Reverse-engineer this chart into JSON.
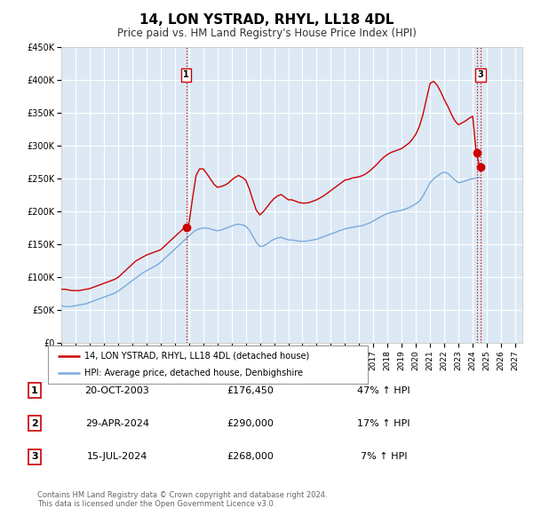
{
  "title": "14, LON YSTRAD, RHYL, LL18 4DL",
  "subtitle": "Price paid vs. HM Land Registry's House Price Index (HPI)",
  "title_fontsize": 11,
  "subtitle_fontsize": 8.5,
  "background_color": "#ffffff",
  "plot_bg_color": "#dce9f5",
  "grid_color": "#ffffff",
  "ylim": [
    0,
    450000
  ],
  "yticks": [
    0,
    50000,
    100000,
    150000,
    200000,
    250000,
    300000,
    350000,
    400000,
    450000
  ],
  "ytick_labels": [
    "£0",
    "£50K",
    "£100K",
    "£150K",
    "£200K",
    "£250K",
    "£300K",
    "£350K",
    "£400K",
    "£450K"
  ],
  "xlim_start": 1995.0,
  "xlim_end": 2027.5,
  "xtick_years": [
    1995,
    1996,
    1997,
    1998,
    1999,
    2000,
    2001,
    2002,
    2003,
    2004,
    2005,
    2006,
    2007,
    2008,
    2009,
    2010,
    2011,
    2012,
    2013,
    2014,
    2015,
    2016,
    2017,
    2018,
    2019,
    2020,
    2021,
    2022,
    2023,
    2024,
    2025,
    2026,
    2027
  ],
  "hpi_color": "#7aaadd",
  "price_color": "#cc0000",
  "vline_color": "#cc0000",
  "marker_color": "#cc0000",
  "marker_size": 6,
  "legend_line1": "14, LON YSTRAD, RHYL, LL18 4DL (detached house)",
  "legend_line2": "HPI: Average price, detached house, Denbighshire",
  "transactions": [
    {
      "num": 1,
      "date": "20-OCT-2003",
      "price": 176450,
      "price_str": "£176,450",
      "pct": "47%",
      "direction": "↑",
      "label": "HPI",
      "x": 2003.8
    },
    {
      "num": 2,
      "date": "29-APR-2024",
      "price": 290000,
      "price_str": "£290,000",
      "pct": "17%",
      "direction": "↑",
      "label": "HPI",
      "x": 2024.33
    },
    {
      "num": 3,
      "date": "15-JUL-2024",
      "price": 268000,
      "price_str": "£268,000",
      "pct": "7%",
      "direction": "↑",
      "label": "HPI",
      "x": 2024.54
    }
  ],
  "footer_line1": "Contains HM Land Registry data © Crown copyright and database right 2024.",
  "footer_line2": "This data is licensed under the Open Government Licence v3.0.",
  "hpi_data_x": [
    1995.0,
    1995.25,
    1995.5,
    1995.75,
    1996.0,
    1996.25,
    1996.5,
    1996.75,
    1997.0,
    1997.25,
    1997.5,
    1997.75,
    1998.0,
    1998.25,
    1998.5,
    1998.75,
    1999.0,
    1999.25,
    1999.5,
    1999.75,
    2000.0,
    2000.25,
    2000.5,
    2000.75,
    2001.0,
    2001.25,
    2001.5,
    2001.75,
    2002.0,
    2002.25,
    2002.5,
    2002.75,
    2003.0,
    2003.25,
    2003.5,
    2003.75,
    2004.0,
    2004.25,
    2004.5,
    2004.75,
    2005.0,
    2005.25,
    2005.5,
    2005.75,
    2006.0,
    2006.25,
    2006.5,
    2006.75,
    2007.0,
    2007.25,
    2007.5,
    2007.75,
    2008.0,
    2008.25,
    2008.5,
    2008.75,
    2009.0,
    2009.25,
    2009.5,
    2009.75,
    2010.0,
    2010.25,
    2010.5,
    2010.75,
    2011.0,
    2011.25,
    2011.5,
    2011.75,
    2012.0,
    2012.25,
    2012.5,
    2012.75,
    2013.0,
    2013.25,
    2013.5,
    2013.75,
    2014.0,
    2014.25,
    2014.5,
    2014.75,
    2015.0,
    2015.25,
    2015.5,
    2015.75,
    2016.0,
    2016.25,
    2016.5,
    2016.75,
    2017.0,
    2017.25,
    2017.5,
    2017.75,
    2018.0,
    2018.25,
    2018.5,
    2018.75,
    2019.0,
    2019.25,
    2019.5,
    2019.75,
    2020.0,
    2020.25,
    2020.5,
    2020.75,
    2021.0,
    2021.25,
    2021.5,
    2021.75,
    2022.0,
    2022.25,
    2022.5,
    2022.75,
    2023.0,
    2023.25,
    2023.5,
    2023.75,
    2024.0,
    2024.25,
    2024.5
  ],
  "hpi_data_y": [
    57000,
    56000,
    55500,
    56000,
    57000,
    58000,
    59000,
    60000,
    62000,
    64000,
    66000,
    68000,
    70000,
    72000,
    74000,
    76000,
    79000,
    83000,
    87000,
    91000,
    95000,
    99000,
    103000,
    107000,
    110000,
    113000,
    116000,
    119000,
    123000,
    128000,
    133000,
    138000,
    143000,
    148000,
    153000,
    158000,
    163000,
    168000,
    172000,
    174000,
    175000,
    175000,
    174000,
    172000,
    171000,
    172000,
    174000,
    176000,
    178000,
    180000,
    181000,
    180000,
    178000,
    172000,
    163000,
    153000,
    147000,
    148000,
    151000,
    155000,
    158000,
    160000,
    161000,
    159000,
    157000,
    157000,
    156000,
    155000,
    155000,
    155000,
    156000,
    157000,
    158000,
    160000,
    162000,
    164000,
    166000,
    168000,
    170000,
    172000,
    174000,
    175000,
    176000,
    177000,
    178000,
    179000,
    181000,
    183000,
    186000,
    189000,
    192000,
    195000,
    197000,
    199000,
    200000,
    201000,
    202000,
    204000,
    206000,
    209000,
    212000,
    216000,
    224000,
    234000,
    244000,
    250000,
    254000,
    258000,
    260000,
    258000,
    253000,
    248000,
    244000,
    245000,
    247000,
    249000,
    250000,
    251000,
    252000
  ],
  "price_data_x": [
    1995.0,
    1995.25,
    1995.5,
    1995.75,
    1996.0,
    1996.25,
    1996.5,
    1996.75,
    1997.0,
    1997.25,
    1997.5,
    1997.75,
    1998.0,
    1998.25,
    1998.5,
    1998.75,
    1999.0,
    1999.25,
    1999.5,
    1999.75,
    2000.0,
    2000.25,
    2000.5,
    2000.75,
    2001.0,
    2001.25,
    2001.5,
    2001.75,
    2002.0,
    2002.25,
    2002.5,
    2002.75,
    2003.0,
    2003.25,
    2003.5,
    2003.75,
    2004.0,
    2004.25,
    2004.5,
    2004.75,
    2005.0,
    2005.25,
    2005.5,
    2005.75,
    2006.0,
    2006.25,
    2006.5,
    2006.75,
    2007.0,
    2007.25,
    2007.5,
    2007.75,
    2008.0,
    2008.25,
    2008.5,
    2008.75,
    2009.0,
    2009.25,
    2009.5,
    2009.75,
    2010.0,
    2010.25,
    2010.5,
    2010.75,
    2011.0,
    2011.25,
    2011.5,
    2011.75,
    2012.0,
    2012.25,
    2012.5,
    2012.75,
    2013.0,
    2013.25,
    2013.5,
    2013.75,
    2014.0,
    2014.25,
    2014.5,
    2014.75,
    2015.0,
    2015.25,
    2015.5,
    2015.75,
    2016.0,
    2016.25,
    2016.5,
    2016.75,
    2017.0,
    2017.25,
    2017.5,
    2017.75,
    2018.0,
    2018.25,
    2018.5,
    2018.75,
    2019.0,
    2019.25,
    2019.5,
    2019.75,
    2020.0,
    2020.25,
    2020.5,
    2020.75,
    2021.0,
    2021.25,
    2021.5,
    2021.75,
    2022.0,
    2022.25,
    2022.5,
    2022.75,
    2023.0,
    2023.25,
    2023.5,
    2023.75,
    2024.0,
    2024.25,
    2024.5,
    2024.54
  ],
  "price_data_y": [
    82000,
    82000,
    81000,
    80000,
    80000,
    80000,
    81000,
    82000,
    83000,
    85000,
    87000,
    89000,
    91000,
    93000,
    95000,
    97000,
    100000,
    105000,
    110000,
    115000,
    120000,
    125000,
    128000,
    131000,
    134000,
    136000,
    138000,
    140000,
    142000,
    147000,
    152000,
    157000,
    162000,
    167000,
    172000,
    177000,
    182000,
    220000,
    255000,
    265000,
    265000,
    258000,
    250000,
    242000,
    237000,
    238000,
    240000,
    243000,
    248000,
    252000,
    255000,
    252000,
    248000,
    235000,
    218000,
    202000,
    195000,
    200000,
    207000,
    214000,
    220000,
    224000,
    226000,
    222000,
    218000,
    218000,
    216000,
    214000,
    213000,
    213000,
    214000,
    216000,
    218000,
    221000,
    224000,
    228000,
    232000,
    236000,
    240000,
    244000,
    248000,
    249000,
    251000,
    252000,
    253000,
    255000,
    258000,
    262000,
    267000,
    272000,
    278000,
    283000,
    287000,
    290000,
    292000,
    294000,
    296000,
    300000,
    304000,
    310000,
    318000,
    330000,
    348000,
    372000,
    395000,
    398000,
    392000,
    382000,
    370000,
    360000,
    348000,
    338000,
    332000,
    335000,
    338000,
    342000,
    345000,
    290000,
    268000,
    268000
  ]
}
